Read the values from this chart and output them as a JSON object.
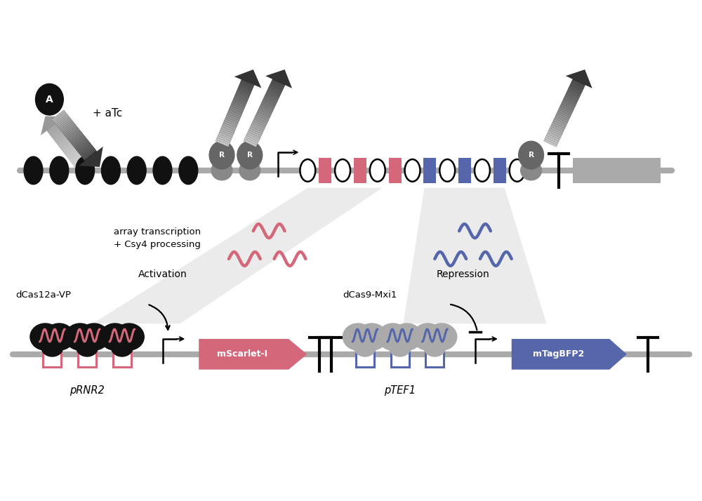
{
  "bg_color": "#ffffff",
  "pink_color": "#d4687a",
  "blue_color": "#5566aa",
  "dark_gray": "#444444",
  "mid_gray": "#777777",
  "light_gray": "#cccccc",
  "beam_gray": "#e5e5e5",
  "black": "#1a1a1a",
  "dna_gray": "#aaaaaa",
  "r_ellipse_color": "#666666",
  "text_array_transcription": "array transcription\n+ Csy4 processing",
  "text_activation": "Activation",
  "text_repression": "Repression",
  "text_atc": "+ aTc",
  "text_dcas12a": "dCas12a-VP",
  "text_dcas9": "dCas9-Mxi1",
  "text_prnr2": "pRNR2",
  "text_ptef1": "pTEF1",
  "text_mscarlet": "mScarlet-I",
  "text_mtagbfp2": "mTagBFP2",
  "figw": 10.0,
  "figh": 7.14,
  "dpi": 100
}
